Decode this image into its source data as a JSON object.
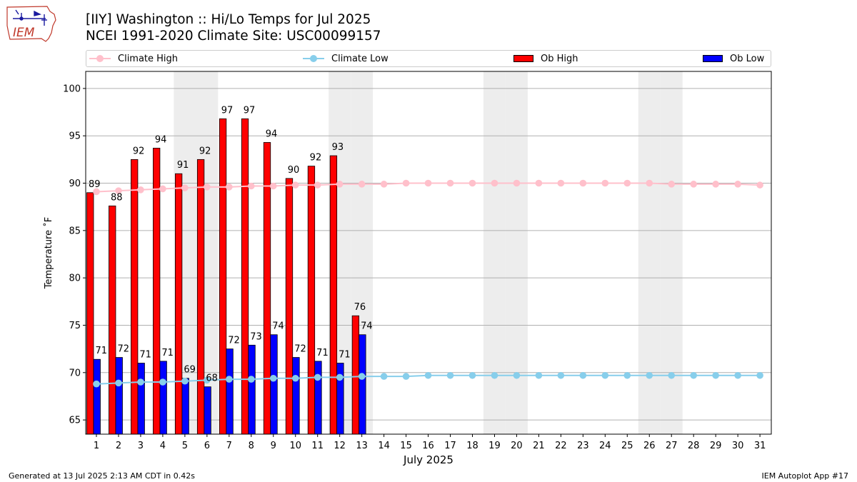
{
  "header": {
    "title_line1": "[IIY] Washington :: Hi/Lo Temps for Jul 2025",
    "title_line2": "NCEI 1991-2020 Climate Site: USC00099157",
    "logo_text": "IEM"
  },
  "legend": {
    "items": [
      {
        "label": "Climate High",
        "kind": "line",
        "color": "#ffc0cb"
      },
      {
        "label": "Climate Low",
        "kind": "line",
        "color": "#87ceeb"
      },
      {
        "label": "Ob High",
        "kind": "bar",
        "color": "#ff0000"
      },
      {
        "label": "Ob Low",
        "kind": "bar",
        "color": "#0000ff"
      }
    ]
  },
  "footer": {
    "left": "Generated at 13 Jul 2025 2:13 AM CDT in 0.42s",
    "right": "IEM Autoplot App #17"
  },
  "chart_data": {
    "type": "bar",
    "xlabel": "July 2025",
    "ylabel": "Temperature ˚F",
    "ylim": [
      63.5,
      101.8
    ],
    "yticks": [
      65,
      70,
      75,
      80,
      85,
      90,
      95,
      100
    ],
    "grid": "horizontal",
    "legend_position": "top",
    "weekend_shading_days": [
      5,
      6,
      12,
      13,
      19,
      20,
      26,
      27
    ],
    "days": [
      1,
      2,
      3,
      4,
      5,
      6,
      7,
      8,
      9,
      10,
      11,
      12,
      13,
      14,
      15,
      16,
      17,
      18,
      19,
      20,
      21,
      22,
      23,
      24,
      25,
      26,
      27,
      28,
      29,
      30,
      31
    ],
    "ob_high": [
      89,
      88,
      92,
      94,
      91,
      92,
      97,
      97,
      94,
      90,
      92,
      93,
      76
    ],
    "ob_high_plot": [
      89.0,
      87.6,
      92.5,
      93.7,
      91.0,
      92.5,
      96.8,
      96.8,
      94.3,
      90.5,
      91.8,
      92.9,
      76.0
    ],
    "ob_low": [
      71,
      72,
      71,
      71,
      69,
      68,
      72,
      73,
      74,
      72,
      71,
      71,
      74
    ],
    "ob_low_plot": [
      71.4,
      71.6,
      71.0,
      71.2,
      69.4,
      68.5,
      72.5,
      72.9,
      74.0,
      71.6,
      71.2,
      71.0,
      74.0
    ],
    "climate_high": [
      89.1,
      89.2,
      89.3,
      89.4,
      89.5,
      89.6,
      89.6,
      89.7,
      89.7,
      89.8,
      89.8,
      89.9,
      89.9,
      89.9,
      90.0,
      90.0,
      90.0,
      90.0,
      90.0,
      90.0,
      90.0,
      90.0,
      90.0,
      90.0,
      90.0,
      90.0,
      89.9,
      89.9,
      89.9,
      89.9,
      89.8
    ],
    "climate_low": [
      68.8,
      68.9,
      69.0,
      69.0,
      69.1,
      69.2,
      69.3,
      69.3,
      69.4,
      69.4,
      69.5,
      69.5,
      69.6,
      69.6,
      69.6,
      69.7,
      69.7,
      69.7,
      69.7,
      69.7,
      69.7,
      69.7,
      69.7,
      69.7,
      69.7,
      69.7,
      69.7,
      69.7,
      69.7,
      69.7,
      69.7
    ],
    "colors": {
      "ob_high": "#ff0000",
      "ob_low": "#0000ff",
      "climate_high": "#ffc0cb",
      "climate_low": "#87ceeb",
      "weekend": "#ededed",
      "grid": "#b0b0b0"
    }
  }
}
